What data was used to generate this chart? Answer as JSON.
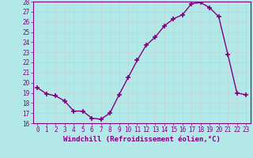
{
  "x": [
    0,
    1,
    2,
    3,
    4,
    5,
    6,
    7,
    8,
    9,
    10,
    11,
    12,
    13,
    14,
    15,
    16,
    17,
    18,
    19,
    20,
    21,
    22,
    23
  ],
  "y": [
    19.5,
    18.9,
    18.7,
    18.2,
    17.2,
    17.2,
    16.5,
    16.4,
    17.0,
    18.8,
    20.5,
    22.2,
    23.7,
    24.5,
    25.6,
    26.3,
    26.7,
    27.8,
    27.9,
    27.4,
    26.5,
    22.8,
    19.0,
    18.8
  ],
  "color": "#800080",
  "bg_color": "#b3e8e8",
  "grid_color": "#c0d8d8",
  "xlabel": "Windchill (Refroidissement éolien,°C)",
  "ylim": [
    16,
    28
  ],
  "xlim": [
    -0.5,
    23.5
  ],
  "yticks": [
    16,
    17,
    18,
    19,
    20,
    21,
    22,
    23,
    24,
    25,
    26,
    27,
    28
  ],
  "xticks": [
    0,
    1,
    2,
    3,
    4,
    5,
    6,
    7,
    8,
    9,
    10,
    11,
    12,
    13,
    14,
    15,
    16,
    17,
    18,
    19,
    20,
    21,
    22,
    23
  ],
  "marker": "+",
  "linewidth": 1.0,
  "markersize": 5,
  "markeredgewidth": 1.2,
  "tick_fontsize": 5.5,
  "xlabel_fontsize": 6.5
}
